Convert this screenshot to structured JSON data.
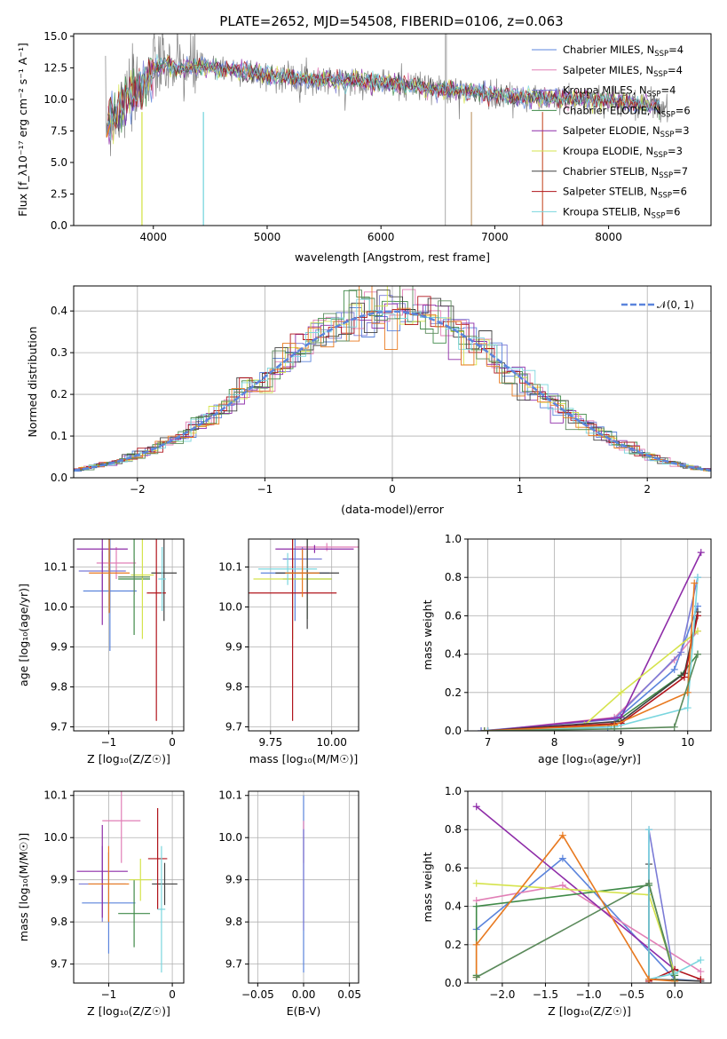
{
  "colors": [
    "#5b84dc",
    "#e17fb6",
    "#7b7bd6",
    "#3f8a48",
    "#8e2ca8",
    "#d5e34c",
    "#404040",
    "#b0141c",
    "#7ad6de"
  ],
  "secondary_colors": [
    "#e8791f",
    "#5b8a5b"
  ],
  "chart_data": [
    {
      "id": "spectrum",
      "type": "line",
      "title": "PLATE=2652, MJD=54508, FIBERID=0106, z=0.063",
      "xlabel": "wavelength [Angstrom, rest frame]",
      "ylabel": "Flux [f_λ10⁻¹⁷ erg cm⁻² s⁻¹ A⁻¹]",
      "xlim": [
        3300,
        8900
      ],
      "ylim": [
        0,
        15.2
      ],
      "xticks": [
        "4000",
        "5000",
        "6000",
        "7000",
        "8000"
      ],
      "yticks": [
        "0.0",
        "2.5",
        "5.0",
        "7.5",
        "10.0",
        "12.5",
        "15.0"
      ],
      "continuum": {
        "x": [
          3580,
          3700,
          3800,
          3900,
          4000,
          4100,
          4200,
          4400,
          4600,
          4800,
          5000,
          5200,
          5400,
          5600,
          5800,
          6000,
          6200,
          6400,
          6600,
          6800,
          7000,
          7200,
          7400,
          7600,
          7800,
          8000,
          8200,
          8400,
          8520
        ],
        "y": [
          8.0,
          9.0,
          10.2,
          11.3,
          12.4,
          12.8,
          12.4,
          12.6,
          12.4,
          12.2,
          11.9,
          11.7,
          11.6,
          11.5,
          11.4,
          11.3,
          11.1,
          10.9,
          10.7,
          10.6,
          10.4,
          10.2,
          10.1,
          10.1,
          10.0,
          9.9,
          9.7,
          9.5,
          9.3
        ]
      },
      "legend": [
        "Chabrier MILES, N_SSP=4",
        "Salpeter MILES, N_SSP=4",
        "Kroupa MILES, N_SSP=4",
        "Chabrier ELODIE, N_SSP=6",
        "Salpeter ELODIE, N_SSP=3",
        "Kroupa ELODIE, N_SSP=3",
        "Chabrier STELIB, N_SSP=7",
        "Salpeter STELIB, N_SSP=6",
        "Kroupa STELIB, N_SSP=6"
      ],
      "legend_position": "right"
    },
    {
      "id": "residuals",
      "type": "histogram",
      "xlabel": "(data-model)/error",
      "ylabel": "Normed distribution",
      "xlim": [
        -2.5,
        2.5
      ],
      "ylim": [
        0,
        0.46
      ],
      "xticks": [
        "−2",
        "−1",
        "0",
        "1",
        "2"
      ],
      "yticks": [
        "0.0",
        "0.1",
        "0.2",
        "0.3",
        "0.4"
      ],
      "reference": "𝒩(0, 1)",
      "legend_position": "top-right",
      "grid": true
    },
    {
      "id": "age-vs-Z",
      "type": "errorbar",
      "xlabel": "Z [log₁₀(Z/Z☉)]",
      "ylabel": "age  [log₁₀(age/yr)]",
      "xlim": [
        -1.55,
        0.18
      ],
      "ylim": [
        9.69,
        10.17
      ],
      "xticks": [
        "−1",
        "0"
      ],
      "yticks": [
        "9.7",
        "9.8",
        "9.9",
        "10.0",
        "10.1"
      ],
      "points": [
        {
          "x": -0.98,
          "xe": 0.42,
          "y": 10.04,
          "ye": 0.15
        },
        {
          "x": -0.88,
          "xe": 0.31,
          "y": 10.11,
          "ye": 0.04
        },
        {
          "x": -1.1,
          "xe": 0.37,
          "y": 10.09,
          "ye": 0.05
        },
        {
          "x": -0.6,
          "xe": 0.25,
          "y": 10.07,
          "ye": 0.14
        },
        {
          "x": -1.1,
          "xe": 0.4,
          "y": 10.145,
          "ye": 0.19
        },
        {
          "x": -0.47,
          "xe": 0.18,
          "y": 10.08,
          "ye": 0.16
        },
        {
          "x": -0.13,
          "xe": 0.2,
          "y": 10.085,
          "ye": 0.12
        },
        {
          "x": -0.25,
          "xe": 0.15,
          "y": 10.035,
          "ye": 0.32
        },
        {
          "x": -0.16,
          "xe": 0.06,
          "y": 10.07,
          "ye": 0.08
        },
        {
          "x": -0.99,
          "xe": 0.32,
          "y": 10.085,
          "ye": 0.1
        },
        {
          "x": -0.6,
          "xe": 0.25,
          "y": 10.075,
          "ye": 0.045
        }
      ]
    },
    {
      "id": "age-vs-mass",
      "type": "errorbar",
      "xlabel": "mass [log₁₀(M/M☉)]",
      "ylabel": "",
      "xlim": [
        9.66,
        10.11
      ],
      "ylim": [
        9.69,
        10.17
      ],
      "xticks": [
        "9.75",
        "10.00"
      ],
      "yticks": [
        "9.7",
        "9.8",
        "9.9",
        "10.0",
        "10.1"
      ],
      "points": [
        {
          "x": 9.85,
          "xe": 0.14,
          "y": 10.085,
          "ye": 0.12
        },
        {
          "x": 9.98,
          "xe": 0.13,
          "y": 10.15,
          "ye": 0.01
        },
        {
          "x": 9.88,
          "xe": 0.08,
          "y": 10.12,
          "ye": 0.03
        },
        {
          "x": 9.9,
          "xe": 0.1,
          "y": 10.07,
          "ye": 0.1
        },
        {
          "x": 9.93,
          "xe": 0.16,
          "y": 10.145,
          "ye": 0.01
        },
        {
          "x": 9.84,
          "xe": 0.16,
          "y": 10.07,
          "ye": 0.15
        },
        {
          "x": 9.9,
          "xe": 0.13,
          "y": 10.085,
          "ye": 0.14
        },
        {
          "x": 9.84,
          "xe": 0.18,
          "y": 10.035,
          "ye": 0.32
        },
        {
          "x": 9.82,
          "xe": 0.12,
          "y": 10.095,
          "ye": 0.04
        },
        {
          "x": 9.88,
          "xe": 0.07,
          "y": 10.085,
          "ye": 0.06
        }
      ]
    },
    {
      "id": "weight-vs-age",
      "type": "line",
      "xlabel": "age  [log₁₀(age/yr)]",
      "ylabel": "mass weight",
      "xlim": [
        6.7,
        10.35
      ],
      "ylim": [
        0,
        1.0
      ],
      "xticks": [
        "7",
        "8",
        "9",
        "10"
      ],
      "yticks": [
        "0.0",
        "0.2",
        "0.4",
        "0.6",
        "0.8",
        "1.0"
      ],
      "grid": true,
      "series": [
        {
          "x": [
            6.9,
            8.8,
            9.8,
            10.15
          ],
          "y": [
            0.0,
            0.02,
            0.32,
            0.65
          ]
        },
        {
          "x": [
            7.0,
            8.9,
            9.8,
            10.15
          ],
          "y": [
            0.0,
            0.07,
            0.37,
            0.52
          ]
        },
        {
          "x": [
            6.9,
            8.9,
            9.9,
            10.15
          ],
          "y": [
            0.0,
            0.06,
            0.41,
            0.8
          ]
        },
        {
          "x": [
            6.95,
            8.85,
            9.9,
            10.15
          ],
          "y": [
            0.0,
            0.03,
            0.29,
            0.4
          ]
        },
        {
          "x": [
            7.0,
            9.0,
            10.2
          ],
          "y": [
            0.0,
            0.07,
            0.93
          ]
        },
        {
          "x": [
            8.45,
            9.0,
            10.15
          ],
          "y": [
            0.03,
            0.2,
            0.52
          ]
        },
        {
          "x": [
            6.95,
            9.0,
            9.95,
            10.15
          ],
          "y": [
            0.0,
            0.05,
            0.3,
            0.62
          ]
        },
        {
          "x": [
            7.0,
            9.0,
            9.95,
            10.15
          ],
          "y": [
            0.0,
            0.04,
            0.28,
            0.6
          ]
        },
        {
          "x": [
            7.0,
            8.9,
            10.0,
            10.15
          ],
          "y": [
            0.0,
            0.02,
            0.12,
            0.8
          ]
        },
        {
          "x": [
            6.95,
            8.9,
            10.0,
            10.1
          ],
          "y": [
            0.0,
            0.03,
            0.2,
            0.77
          ]
        },
        {
          "x": [
            6.95,
            8.9,
            9.8,
            10.15
          ],
          "y": [
            0.0,
            0.01,
            0.02,
            0.4
          ]
        }
      ]
    },
    {
      "id": "mass-vs-Z",
      "type": "errorbar",
      "xlabel": "Z [log₁₀(Z/Z☉)]",
      "ylabel": "mass [log₁₀(M/M☉)]",
      "xlim": [
        -1.55,
        0.18
      ],
      "ylim": [
        9.655,
        10.11
      ],
      "xticks": [
        "−1",
        "0"
      ],
      "yticks": [
        "9.7",
        "9.8",
        "9.9",
        "10.0",
        "10.1"
      ],
      "points": [
        {
          "x": -1.0,
          "xe": 0.42,
          "y": 9.845,
          "ye": 0.12
        },
        {
          "x": -0.8,
          "xe": 0.3,
          "y": 10.04,
          "ye": 0.1
        },
        {
          "x": -1.1,
          "xe": 0.37,
          "y": 9.89,
          "ye": 0.09
        },
        {
          "x": -0.6,
          "xe": 0.25,
          "y": 9.82,
          "ye": 0.08
        },
        {
          "x": -1.1,
          "xe": 0.4,
          "y": 9.92,
          "ye": 0.11
        },
        {
          "x": -0.5,
          "xe": 0.18,
          "y": 9.9,
          "ye": 0.05
        },
        {
          "x": -0.12,
          "xe": 0.2,
          "y": 9.89,
          "ye": 0.05
        },
        {
          "x": -0.23,
          "xe": 0.15,
          "y": 9.95,
          "ye": 0.12
        },
        {
          "x": -0.17,
          "xe": 0.06,
          "y": 9.83,
          "ye": 0.15
        },
        {
          "x": -1.0,
          "xe": 0.32,
          "y": 9.89,
          "ye": 0.09
        }
      ]
    },
    {
      "id": "mass-vs-ebv",
      "type": "errorbar",
      "xlabel": "E(B-V)",
      "ylabel": "",
      "xlim": [
        -0.06,
        0.06
      ],
      "ylim": [
        9.655,
        10.11
      ],
      "xticks": [
        "−0.05",
        "0.00",
        "0.05"
      ],
      "yticks": [
        "9.7",
        "9.8",
        "9.9",
        "10.0",
        "10.1"
      ],
      "points": [
        {
          "x": 0.0,
          "xe": 0.0,
          "y": 9.89,
          "ye": 0.21
        },
        {
          "x": 0.0,
          "xe": 0.0,
          "y": 9.99,
          "ye": 0.05
        },
        {
          "x": 0.0,
          "xe": 0.0,
          "y": 9.9,
          "ye": 0.12
        }
      ]
    },
    {
      "id": "weight-vs-Z",
      "type": "line",
      "xlabel": "Z [log₁₀(Z/Z☉)]",
      "ylabel": "mass weight",
      "xlim": [
        -2.4,
        0.42
      ],
      "ylim": [
        0,
        1.0
      ],
      "xticks": [
        "−2.0",
        "−1.5",
        "−1.0",
        "−0.5",
        "0.0"
      ],
      "yticks": [
        "0.0",
        "0.2",
        "0.4",
        "0.6",
        "0.8",
        "1.0"
      ],
      "grid": true,
      "series": [
        {
          "x": [
            -2.3,
            -1.3,
            0.0,
            0.3
          ],
          "y": [
            0.28,
            0.65,
            0.02,
            0.01
          ]
        },
        {
          "x": [
            -2.3,
            -1.3,
            0.3
          ],
          "y": [
            0.43,
            0.51,
            0.06
          ]
        },
        {
          "x": [
            -0.3,
            -0.3,
            0.0
          ],
          "y": [
            0.0,
            0.8,
            0.02
          ]
        },
        {
          "x": [
            -2.3,
            -2.3,
            -0.3,
            0.0
          ],
          "y": [
            0.04,
            0.4,
            0.51,
            0.04
          ]
        },
        {
          "x": [
            -2.3,
            0.0
          ],
          "y": [
            0.92,
            0.07
          ]
        },
        {
          "x": [
            -2.3,
            -0.3,
            0.0
          ],
          "y": [
            0.52,
            0.46,
            0.05
          ]
        },
        {
          "x": [
            -0.3,
            -0.3,
            0.3
          ],
          "y": [
            0.62,
            0.02,
            0.01
          ]
        },
        {
          "x": [
            -0.3,
            0.0,
            0.3
          ],
          "y": [
            0.01,
            0.07,
            0.02
          ]
        },
        {
          "x": [
            -0.3,
            -0.3,
            0.0,
            0.3
          ],
          "y": [
            0.8,
            0.02,
            0.05,
            0.12
          ]
        },
        {
          "x": [
            -2.3,
            -2.3,
            -1.3,
            -0.3,
            0.0
          ],
          "y": [
            0.03,
            0.2,
            0.77,
            0.02,
            0.01
          ]
        },
        {
          "x": [
            -2.3,
            -0.3,
            0.0
          ],
          "y": [
            0.03,
            0.52,
            0.02
          ]
        }
      ]
    }
  ]
}
